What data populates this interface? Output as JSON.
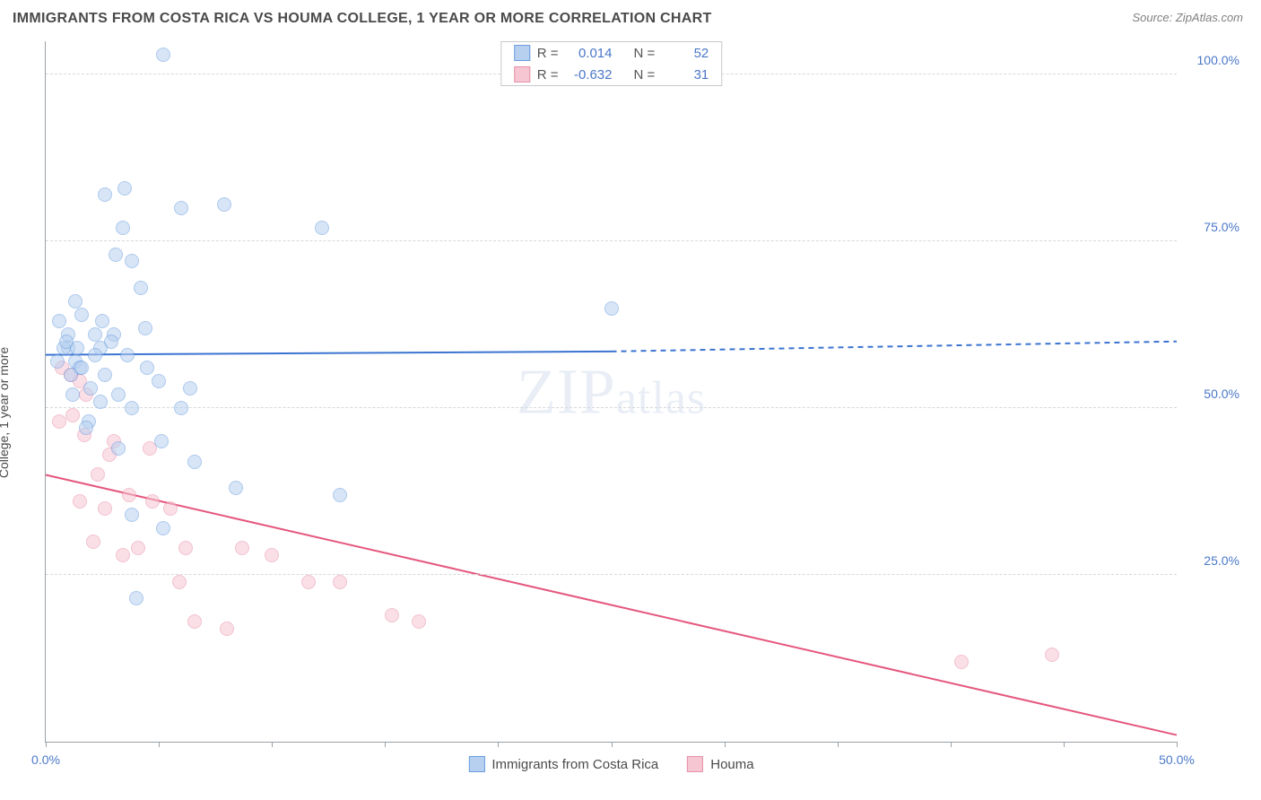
{
  "title": "IMMIGRANTS FROM COSTA RICA VS HOUMA COLLEGE, 1 YEAR OR MORE CORRELATION CHART",
  "source_label": "Source: ZipAtlas.com",
  "y_axis_label": "College, 1 year or more",
  "watermark_text": "ZIPatlas",
  "chart": {
    "type": "scatter",
    "background_color": "#ffffff",
    "grid_color": "#d6d8db",
    "axis_color": "#9aa0a6",
    "tick_label_color": "#4a78c8",
    "xlim": [
      0,
      50
    ],
    "ylim": [
      0,
      105
    ],
    "xtick_positions": [
      0,
      5,
      10,
      15,
      20,
      25,
      30,
      35,
      40,
      45,
      50
    ],
    "xtick_labels": {
      "0": "0.0%",
      "50": "50.0%"
    },
    "ytick_positions": [
      25,
      50,
      75,
      100
    ],
    "ytick_labels": {
      "25": "25.0%",
      "50": "50.0%",
      "75": "75.0%",
      "100": "100.0%"
    },
    "marker_radius": 8,
    "marker_opacity": 0.55,
    "line_width": 2
  },
  "series": {
    "a": {
      "label": "Immigrants from Costa Rica",
      "color_fill": "#b8d0f0",
      "color_stroke": "#6a9de0",
      "line_color": "#3b74d1",
      "r": "0.014",
      "n": "52",
      "trend": {
        "x1": 0,
        "y1": 58,
        "x2_solid": 25,
        "y2_solid": 58.5,
        "x2": 50,
        "y2": 60
      },
      "points": [
        [
          5.2,
          103
        ],
        [
          1.3,
          66
        ],
        [
          4.2,
          68
        ],
        [
          2.6,
          82
        ],
        [
          3.5,
          83
        ],
        [
          6.0,
          80
        ],
        [
          7.9,
          80.5
        ],
        [
          3.4,
          77
        ],
        [
          12.2,
          77
        ],
        [
          3.1,
          73
        ],
        [
          3.8,
          72
        ],
        [
          0.6,
          63
        ],
        [
          1.0,
          61
        ],
        [
          1.0,
          59
        ],
        [
          1.4,
          59
        ],
        [
          1.3,
          57
        ],
        [
          1.5,
          56
        ],
        [
          2.4,
          59
        ],
        [
          2.6,
          55
        ],
        [
          5.0,
          54
        ],
        [
          6.4,
          53
        ],
        [
          3.6,
          58
        ],
        [
          4.5,
          56
        ],
        [
          2.4,
          51
        ],
        [
          3.8,
          50
        ],
        [
          6.0,
          50
        ],
        [
          1.9,
          48
        ],
        [
          5.1,
          45
        ],
        [
          3.2,
          44
        ],
        [
          6.6,
          42
        ],
        [
          3.8,
          34
        ],
        [
          5.2,
          32
        ],
        [
          8.4,
          38
        ],
        [
          13.0,
          37
        ],
        [
          4.0,
          21.5
        ],
        [
          25.0,
          65
        ],
        [
          1.1,
          55
        ],
        [
          2.2,
          61
        ],
        [
          0.8,
          59
        ],
        [
          2.2,
          58
        ],
        [
          3.0,
          61
        ],
        [
          4.4,
          62
        ],
        [
          1.6,
          64
        ],
        [
          2.0,
          53
        ],
        [
          1.2,
          52
        ],
        [
          0.5,
          57
        ],
        [
          0.9,
          60
        ],
        [
          1.6,
          56
        ],
        [
          2.9,
          60
        ],
        [
          1.8,
          47
        ],
        [
          2.5,
          63
        ],
        [
          3.2,
          52
        ]
      ]
    },
    "b": {
      "label": "Houma",
      "color_fill": "#f6c6d3",
      "color_stroke": "#e890a8",
      "line_color": "#e5577d",
      "r": "-0.632",
      "n": "31",
      "trend": {
        "x1": 0,
        "y1": 40,
        "x2_solid": 50,
        "y2_solid": 1,
        "x2": 50,
        "y2": 1
      },
      "points": [
        [
          0.7,
          56
        ],
        [
          1.1,
          55
        ],
        [
          1.5,
          54
        ],
        [
          1.8,
          52
        ],
        [
          1.2,
          49
        ],
        [
          0.6,
          48
        ],
        [
          1.7,
          46
        ],
        [
          3.0,
          45
        ],
        [
          4.6,
          44
        ],
        [
          2.3,
          40
        ],
        [
          1.5,
          36
        ],
        [
          2.6,
          35
        ],
        [
          3.7,
          37
        ],
        [
          4.7,
          36
        ],
        [
          5.5,
          35
        ],
        [
          2.1,
          30
        ],
        [
          3.4,
          28
        ],
        [
          4.1,
          29
        ],
        [
          6.2,
          29
        ],
        [
          8.7,
          29
        ],
        [
          10.0,
          28
        ],
        [
          5.9,
          24
        ],
        [
          11.6,
          24
        ],
        [
          13.0,
          24
        ],
        [
          6.6,
          18
        ],
        [
          8.0,
          17
        ],
        [
          15.3,
          19
        ],
        [
          16.5,
          18
        ],
        [
          40.5,
          12
        ],
        [
          44.5,
          13
        ],
        [
          2.8,
          43
        ]
      ]
    }
  },
  "stats_legend": {
    "r_label": "R  =",
    "n_label": "N  ="
  },
  "bottom_legend": {
    "items": [
      "a",
      "b"
    ]
  }
}
